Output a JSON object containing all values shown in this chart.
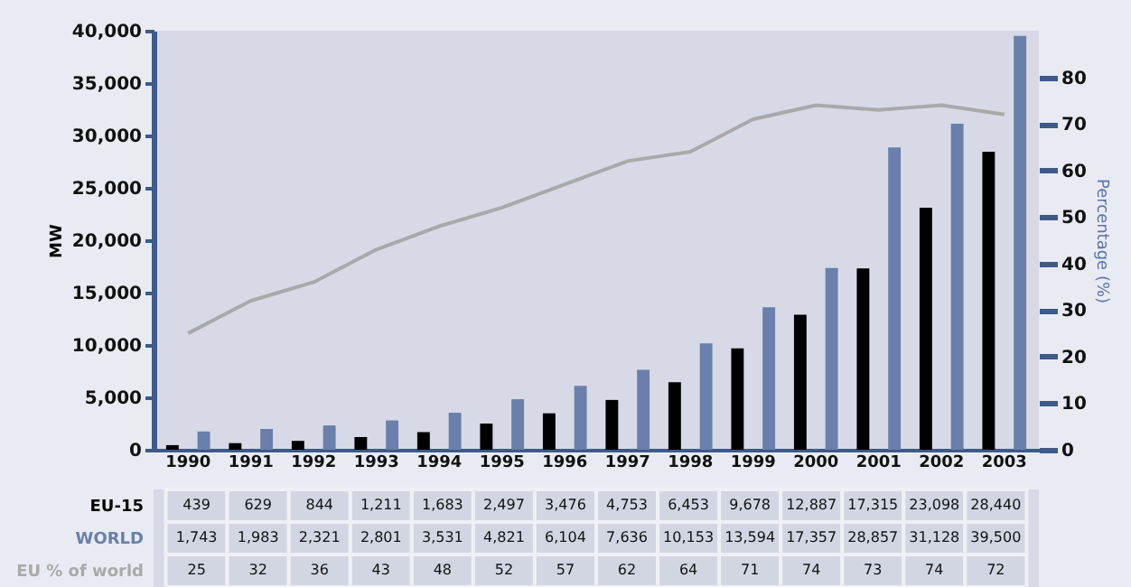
{
  "chart_data": {
    "type": "bar",
    "ylabel": "MW",
    "y2label": "Percentage (%)",
    "categories": [
      "1990",
      "1991",
      "1992",
      "1993",
      "1994",
      "1995",
      "1996",
      "1997",
      "1998",
      "1999",
      "2000",
      "2001",
      "2002",
      "2003"
    ],
    "series": [
      {
        "name": "EU-15",
        "color": "#000000",
        "values": [
          439,
          629,
          844,
          1211,
          1683,
          2497,
          3476,
          4753,
          6453,
          9678,
          12887,
          17315,
          23098,
          28440
        ],
        "value_labels": [
          "439",
          "629",
          "844",
          "1,211",
          "1,683",
          "2,497",
          "3,476",
          "4,753",
          "6,453",
          "9,678",
          "12,887",
          "17,315",
          "23,098",
          "28,440"
        ]
      },
      {
        "name": "WORLD",
        "color": "#6a7fab",
        "values": [
          1743,
          1983,
          2321,
          2801,
          3531,
          4821,
          6104,
          7636,
          10153,
          13594,
          17357,
          28857,
          31128,
          39500
        ],
        "value_labels": [
          "1,743",
          "1,983",
          "2,321",
          "2,801",
          "3,531",
          "4,821",
          "6,104",
          "7,636",
          "10,153",
          "13,594",
          "17,357",
          "28,857",
          "31,128",
          "39,500"
        ]
      },
      {
        "name": "EU % of world",
        "type": "line",
        "axis": "y2",
        "color": "#a9a9a9",
        "values": [
          25,
          32,
          36,
          43,
          48,
          52,
          57,
          62,
          64,
          71,
          74,
          73,
          74,
          72
        ],
        "value_labels": [
          "25",
          "32",
          "36",
          "43",
          "48",
          "52",
          "57",
          "62",
          "64",
          "71",
          "74",
          "73",
          "74",
          "72"
        ]
      }
    ],
    "ylim": [
      0,
      40000
    ],
    "yticks": [
      0,
      {
        "value": 5000,
        "label": "5,000"
      },
      {
        "value": 10000,
        "label": "10,000"
      },
      {
        "value": 15000,
        "label": "15,000"
      },
      {
        "value": 20000,
        "label": "20,000"
      },
      {
        "value": 25000,
        "label": "25,000"
      },
      {
        "value": 30000,
        "label": "30,000"
      },
      {
        "value": 35000,
        "label": "35,000"
      },
      {
        "value": 40000,
        "label": "40,000"
      }
    ],
    "y2lim": [
      0,
      90
    ],
    "y2ticks": [
      0,
      10,
      20,
      30,
      40,
      50,
      60,
      70,
      80
    ],
    "grid": false,
    "legend": false,
    "marker": "none",
    "line_style": "solid"
  }
}
